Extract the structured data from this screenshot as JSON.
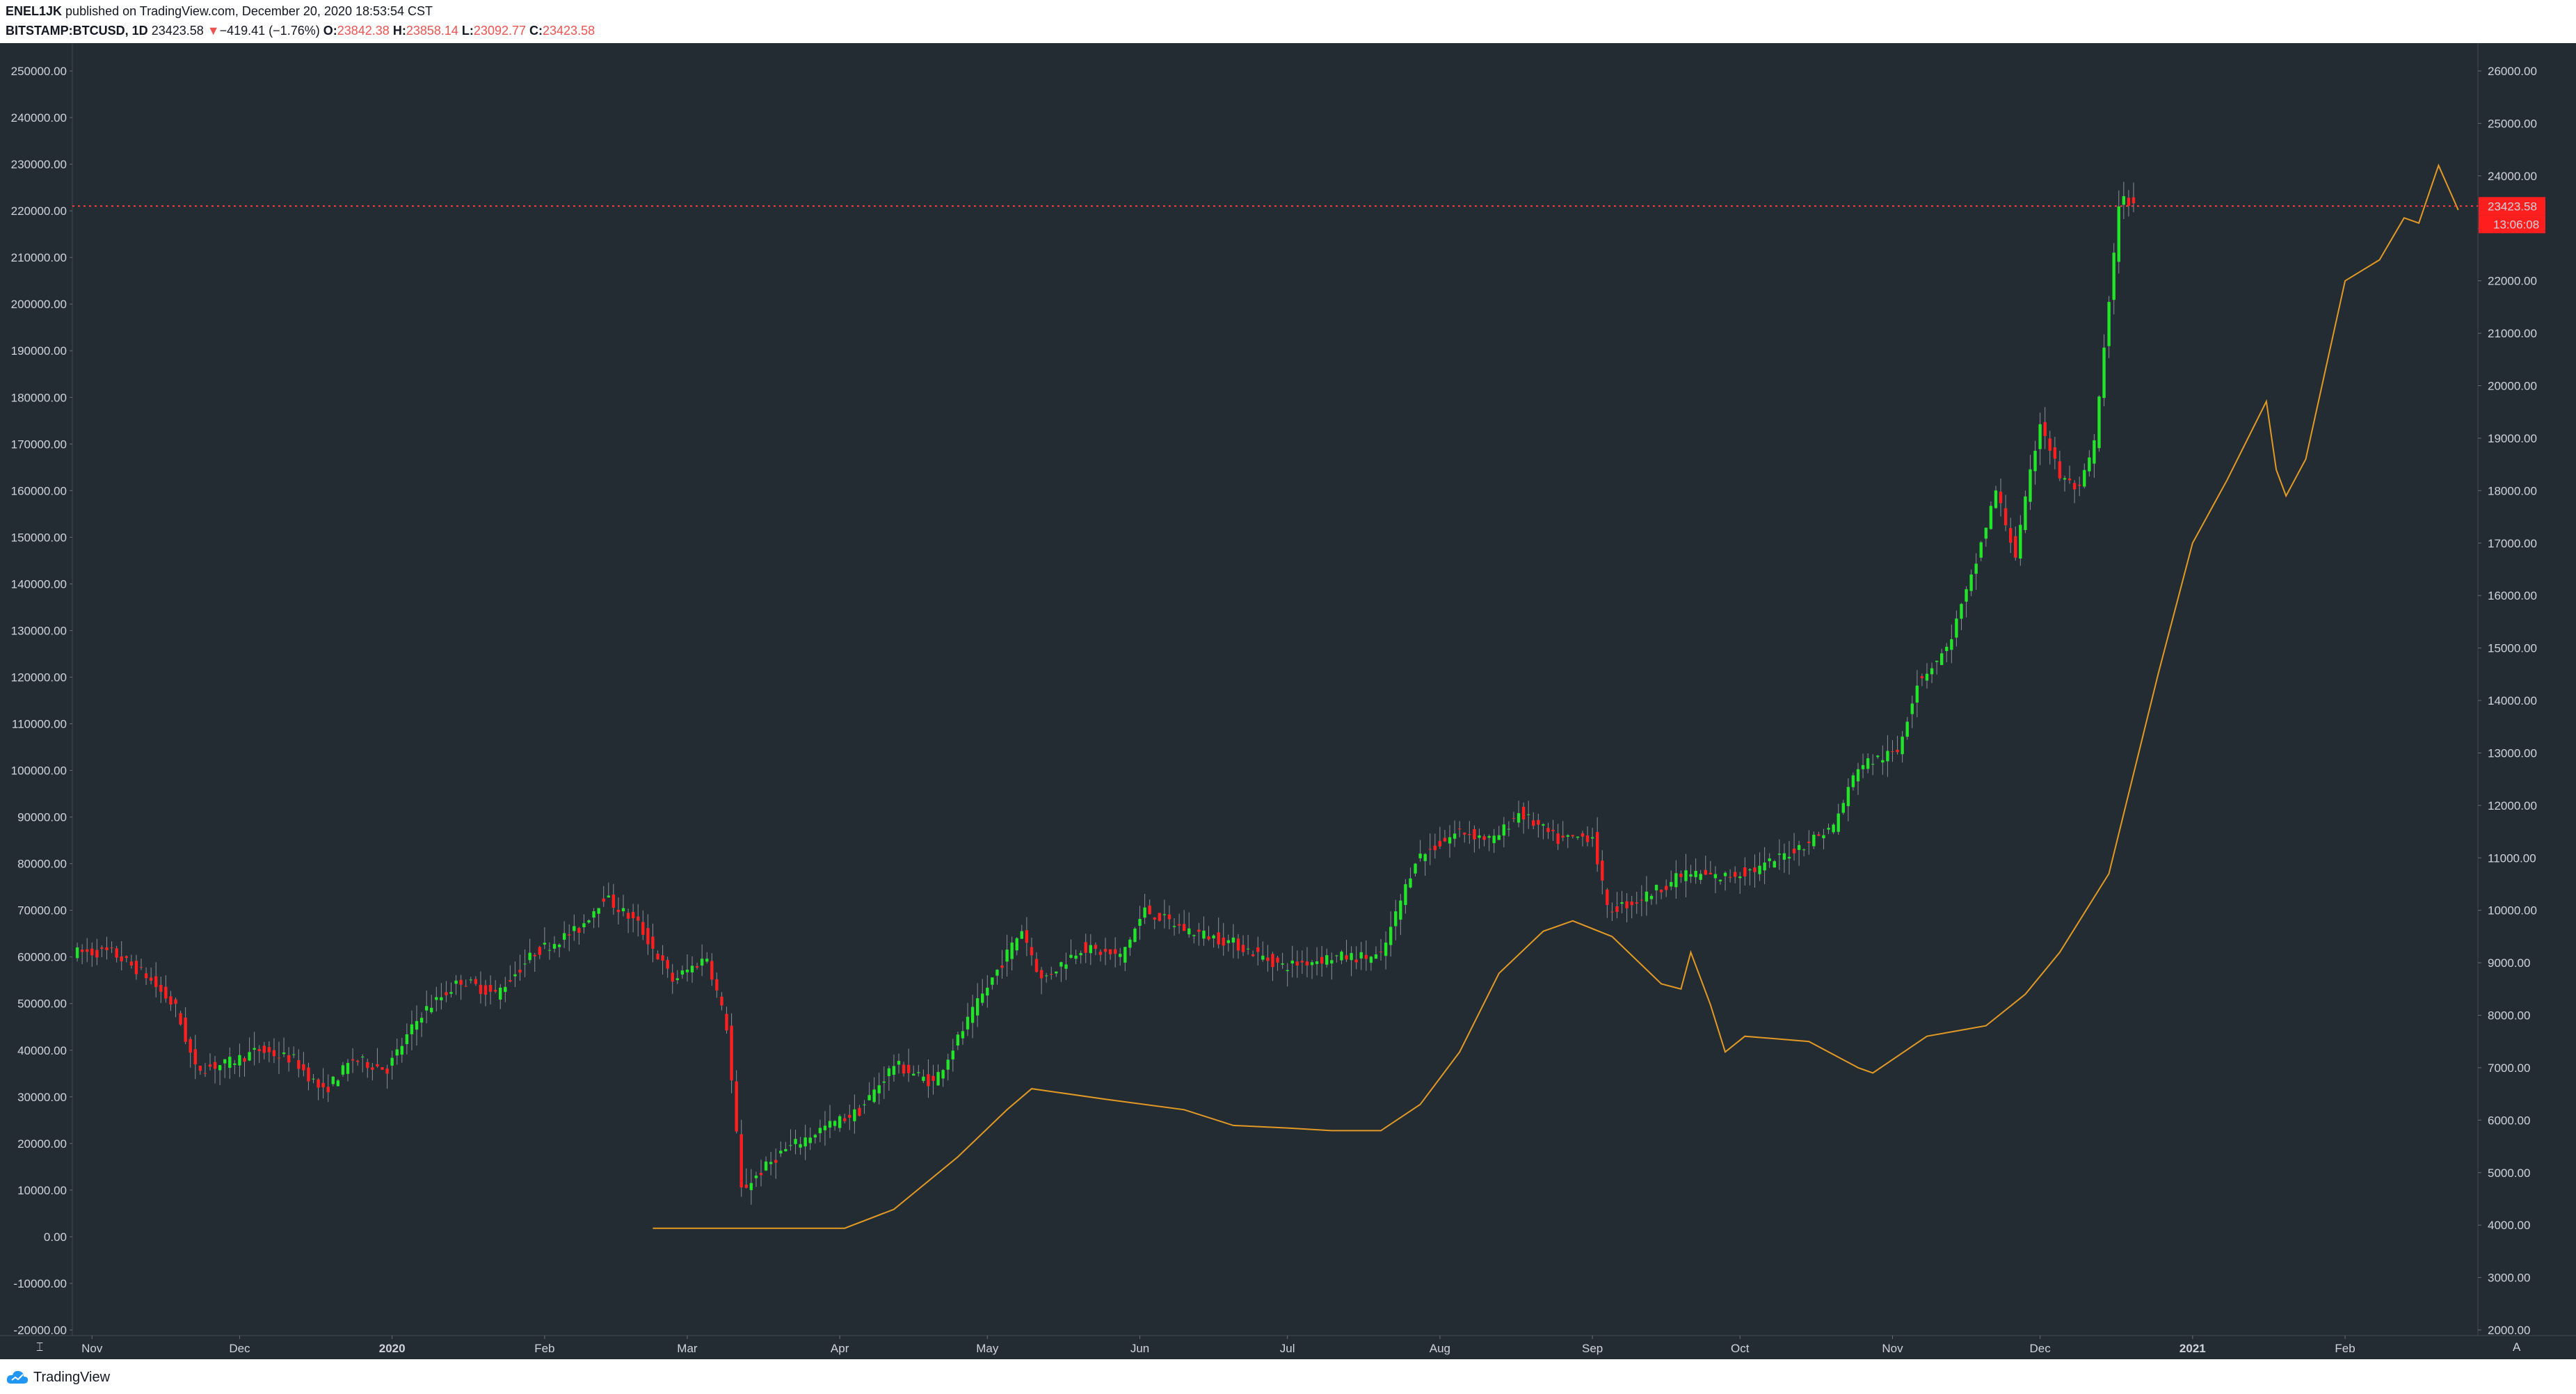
{
  "header": {
    "author": "ENEL1JK",
    "published_text": "published on TradingView.com, December 20, 2020 18:53:54 CST",
    "symbol": "BITSTAMP:BTCUSD, 1D",
    "last": "23423.58",
    "change_arrow": "▼",
    "change": "−419.41 (−1.76%)",
    "o_label": "O:",
    "o_value": "23842.38",
    "h_label": "H:",
    "h_value": "23858.14",
    "l_label": "L:",
    "l_value": "23092.77",
    "c_label": "C:",
    "c_value": "23423.58"
  },
  "footer": {
    "brand": "TradingView",
    "logo_icon": "tradingview-cloud-icon"
  },
  "price_badge": {
    "value": "23423.58",
    "countdown": "13:06:08",
    "color": "#ff1e1e"
  },
  "colors": {
    "background": "#232c33",
    "up": "#22e52a",
    "down": "#ff1f1f",
    "line": "#e29a24",
    "last_price_line": "#ff3b3b"
  },
  "chart_data": {
    "type": "candlestick",
    "left_axis": {
      "min": -20000,
      "max": 250000,
      "ticks": [
        "250000.00",
        "240000.00",
        "230000.00",
        "220000.00",
        "210000.00",
        "200000.00",
        "190000.00",
        "180000.00",
        "170000.00",
        "160000.00",
        "150000.00",
        "140000.00",
        "130000.00",
        "120000.00",
        "110000.00",
        "100000.00",
        "90000.00",
        "80000.00",
        "70000.00",
        "60000.00",
        "50000.00",
        "40000.00",
        "30000.00",
        "20000.00",
        "10000.00",
        "0.00",
        "-10000.00",
        "-20000.00"
      ]
    },
    "right_axis": {
      "min": 2000,
      "max": 26000,
      "ticks": [
        "26000.00",
        "25000.00",
        "24000.00",
        "23000.00",
        "22000.00",
        "21000.00",
        "20000.00",
        "19000.00",
        "18000.00",
        "17000.00",
        "16000.00",
        "15000.00",
        "14000.00",
        "13000.00",
        "12000.00",
        "11000.00",
        "10000.00",
        "9000.00",
        "8000.00",
        "7000.00",
        "6000.00",
        "5000.00",
        "4000.00",
        "3000.00",
        "2000.00"
      ]
    },
    "x_axis": {
      "labels": [
        "Nov",
        "Dec",
        "2020",
        "Feb",
        "Mar",
        "Apr",
        "May",
        "Jun",
        "Jul",
        "Aug",
        "Sep",
        "Oct",
        "Nov",
        "Dec",
        "2021",
        "Feb"
      ],
      "label_dates": [
        "2019-11-01",
        "2019-12-01",
        "2020-01-01",
        "2020-02-01",
        "2020-03-01",
        "2020-04-01",
        "2020-05-01",
        "2020-06-01",
        "2020-07-01",
        "2020-08-01",
        "2020-09-01",
        "2020-10-01",
        "2020-11-01",
        "2020-12-01",
        "2021-01-01",
        "2021-02-01"
      ]
    },
    "series": [
      {
        "type": "candles",
        "axis": "left",
        "anchors": [
          [
            "2019-10-28",
            61000
          ],
          [
            "2019-11-05",
            61000
          ],
          [
            "2019-11-12",
            56000
          ],
          [
            "2019-11-18",
            49000
          ],
          [
            "2019-11-22",
            36000
          ],
          [
            "2019-11-28",
            37000
          ],
          [
            "2019-12-05",
            40000
          ],
          [
            "2019-12-12",
            38000
          ],
          [
            "2019-12-18",
            31000
          ],
          [
            "2019-12-24",
            38000
          ],
          [
            "2019-12-31",
            36000
          ],
          [
            "2020-01-07",
            48000
          ],
          [
            "2020-01-15",
            55000
          ],
          [
            "2020-01-22",
            52000
          ],
          [
            "2020-01-30",
            61000
          ],
          [
            "2020-02-08",
            66000
          ],
          [
            "2020-02-13",
            73000
          ],
          [
            "2020-02-20",
            67000
          ],
          [
            "2020-02-27",
            55000
          ],
          [
            "2020-03-05",
            60000
          ],
          [
            "2020-03-09",
            45000
          ],
          [
            "2020-03-12",
            10000
          ],
          [
            "2020-03-20",
            18000
          ],
          [
            "2020-03-28",
            23000
          ],
          [
            "2020-04-05",
            27000
          ],
          [
            "2020-04-12",
            37000
          ],
          [
            "2020-04-20",
            33000
          ],
          [
            "2020-04-29",
            50000
          ],
          [
            "2020-05-08",
            66000
          ],
          [
            "2020-05-12",
            55000
          ],
          [
            "2020-05-20",
            62000
          ],
          [
            "2020-05-28",
            60000
          ],
          [
            "2020-06-02",
            70000
          ],
          [
            "2020-06-10",
            66000
          ],
          [
            "2020-06-20",
            63000
          ],
          [
            "2020-06-30",
            58000
          ],
          [
            "2020-07-10",
            60000
          ],
          [
            "2020-07-20",
            60000
          ],
          [
            "2020-07-27",
            81000
          ],
          [
            "2020-08-05",
            87000
          ],
          [
            "2020-08-12",
            85000
          ],
          [
            "2020-08-17",
            91000
          ],
          [
            "2020-08-25",
            85000
          ],
          [
            "2020-09-01",
            86000
          ],
          [
            "2020-09-04",
            70000
          ],
          [
            "2020-09-10",
            72000
          ],
          [
            "2020-09-20",
            78000
          ],
          [
            "2020-09-27",
            77000
          ],
          [
            "2020-10-05",
            79000
          ],
          [
            "2020-10-12",
            83000
          ],
          [
            "2020-10-20",
            88000
          ],
          [
            "2020-10-25",
            101000
          ],
          [
            "2020-11-02",
            104000
          ],
          [
            "2020-11-06",
            119000
          ],
          [
            "2020-11-12",
            126000
          ],
          [
            "2020-11-17",
            141000
          ],
          [
            "2020-11-22",
            160000
          ],
          [
            "2020-11-26",
            146000
          ],
          [
            "2020-12-01",
            175000
          ],
          [
            "2020-12-05",
            163000
          ],
          [
            "2020-12-09",
            160000
          ],
          [
            "2020-12-12",
            170000
          ],
          [
            "2020-12-16",
            210000
          ],
          [
            "2020-12-17",
            222000
          ],
          [
            "2020-12-20",
            222000
          ]
        ]
      },
      {
        "type": "line",
        "axis": "right",
        "anchors": [
          [
            "2020-02-23",
            3940
          ],
          [
            "2020-04-02",
            3940
          ],
          [
            "2020-04-12",
            4300
          ],
          [
            "2020-04-25",
            5300
          ],
          [
            "2020-05-05",
            6200
          ],
          [
            "2020-05-10",
            6600
          ],
          [
            "2020-05-25",
            6400
          ],
          [
            "2020-06-10",
            6200
          ],
          [
            "2020-06-20",
            5900
          ],
          [
            "2020-07-01",
            5850
          ],
          [
            "2020-07-10",
            5800
          ],
          [
            "2020-07-20",
            5800
          ],
          [
            "2020-07-28",
            6300
          ],
          [
            "2020-08-05",
            7300
          ],
          [
            "2020-08-13",
            8800
          ],
          [
            "2020-08-22",
            9600
          ],
          [
            "2020-08-28",
            9800
          ],
          [
            "2020-09-05",
            9500
          ],
          [
            "2020-09-15",
            8600
          ],
          [
            "2020-09-19",
            8500
          ],
          [
            "2020-09-21",
            9200
          ],
          [
            "2020-09-25",
            8200
          ],
          [
            "2020-09-28",
            7300
          ],
          [
            "2020-10-02",
            7600
          ],
          [
            "2020-10-15",
            7500
          ],
          [
            "2020-10-25",
            7000
          ],
          [
            "2020-10-28",
            6900
          ],
          [
            "2020-11-08",
            7600
          ],
          [
            "2020-11-14",
            7700
          ],
          [
            "2020-11-20",
            7800
          ],
          [
            "2020-11-28",
            8400
          ],
          [
            "2020-12-05",
            9200
          ],
          [
            "2020-12-15",
            10700
          ],
          [
            "2020-12-25",
            14500
          ],
          [
            "2021-01-01",
            17000
          ],
          [
            "2021-01-08",
            18200
          ],
          [
            "2021-01-16",
            19700
          ],
          [
            "2021-01-18",
            18400
          ],
          [
            "2021-01-20",
            17900
          ],
          [
            "2021-01-24",
            18600
          ],
          [
            "2021-02-01",
            22000
          ],
          [
            "2021-02-08",
            22400
          ],
          [
            "2021-02-13",
            23200
          ],
          [
            "2021-02-16",
            23100
          ],
          [
            "2021-02-20",
            24200
          ],
          [
            "2021-02-24",
            23350
          ]
        ]
      }
    ],
    "last_price": 23423.58
  }
}
